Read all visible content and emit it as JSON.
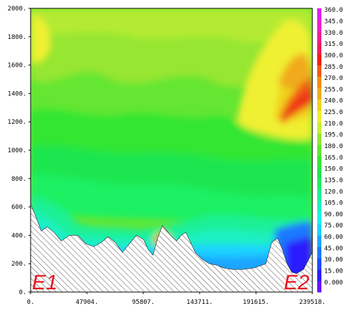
{
  "chart_data": {
    "type": "heatmap",
    "title": "",
    "xlabel": "",
    "ylabel": "",
    "xlim": [
      0,
      239518
    ],
    "ylim": [
      0,
      2000
    ],
    "x_ticks": [
      "0.",
      "47904.",
      "95807.",
      "143711.",
      "191615.",
      "239518."
    ],
    "x_tick_values": [
      0,
      47904,
      95807,
      143711,
      191615,
      239518
    ],
    "y_ticks": [
      "0.",
      "200.",
      "400.",
      "600.",
      "800.",
      "1000.",
      "1200.",
      "1400.",
      "1600.",
      "1800.",
      "2000."
    ],
    "y_tick_values": [
      0,
      200,
      400,
      600,
      800,
      1000,
      1200,
      1400,
      1600,
      1800,
      2000
    ],
    "colorbar": {
      "labels": [
        "0.000",
        "15.00",
        "30.00",
        "45.00",
        "60.00",
        "75.00",
        "90.00",
        "105.0",
        "120.0",
        "135.0",
        "150.0",
        "165.0",
        "180.0",
        "195.0",
        "210.0",
        "225.0",
        "240.0",
        "255.0",
        "270.0",
        "285.0",
        "300.0",
        "315.0",
        "330.0",
        "345.0",
        "360.0"
      ],
      "levels": [
        0,
        15,
        30,
        45,
        60,
        75,
        90,
        105,
        120,
        135,
        150,
        165,
        180,
        195,
        210,
        225,
        240,
        255,
        270,
        285,
        300,
        315,
        330,
        345,
        360
      ],
      "colors": [
        "#6a14ff",
        "#2c1eff",
        "#1e4aff",
        "#1e78ff",
        "#1ea5ff",
        "#1ed2ff",
        "#1ef0f0",
        "#1ef0c3",
        "#1ef096",
        "#1ef064",
        "#1ee650",
        "#32e632",
        "#64e632",
        "#96e632",
        "#c8f032",
        "#f0f032",
        "#f0d21e",
        "#f0aa1e",
        "#f08c14",
        "#f05a14",
        "#f01e14",
        "#f01e5a",
        "#f01e96",
        "#f01ec8",
        "#dc1ef0"
      ]
    },
    "terrain": {
      "x": [
        0,
        5000,
        9000,
        14000,
        20000,
        26000,
        33000,
        40000,
        47000,
        54000,
        60000,
        66000,
        72000,
        78000,
        84000,
        90000,
        96000,
        100000,
        104000,
        108000,
        112000,
        116000,
        120000,
        124000,
        128000,
        132000,
        136000,
        140000,
        146000,
        152000,
        158000,
        164000,
        172000,
        180000,
        190000,
        200000,
        205000,
        210000,
        214000,
        218000,
        222000,
        226000,
        232000,
        239518
      ],
      "z": [
        620,
        520,
        430,
        460,
        420,
        360,
        400,
        400,
        340,
        320,
        350,
        390,
        350,
        280,
        340,
        400,
        370,
        300,
        260,
        380,
        470,
        430,
        390,
        360,
        400,
        420,
        350,
        280,
        230,
        200,
        190,
        170,
        160,
        160,
        170,
        200,
        350,
        380,
        300,
        200,
        140,
        130,
        160,
        280
      ]
    },
    "annotations": [
      "E1",
      "E2"
    ]
  }
}
